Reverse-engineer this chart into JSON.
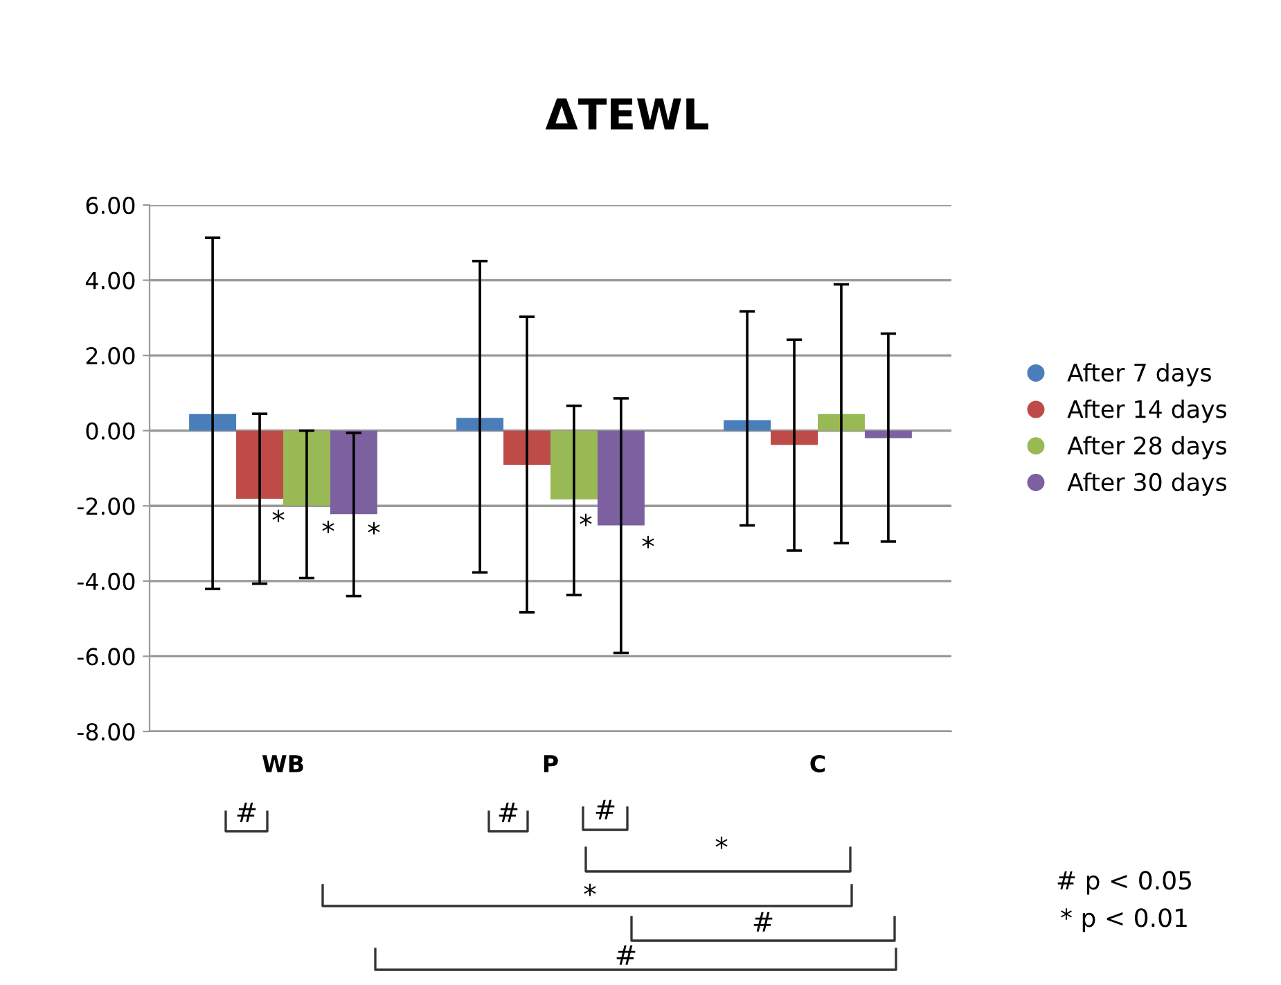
{
  "chart_data": {
    "type": "bar",
    "title": "ΔTEWL",
    "categories": [
      "WB",
      "P",
      "C"
    ],
    "series": [
      {
        "name": "After 7 days",
        "color": "#4a7ebb",
        "values": [
          0.44,
          0.34,
          0.28
        ],
        "errors": [
          [
            -4.21,
            5.13
          ],
          [
            -3.77,
            4.51
          ],
          [
            -2.52,
            3.17
          ]
        ]
      },
      {
        "name": "After 14 days",
        "color": "#be4b48",
        "values": [
          -1.81,
          -0.91,
          -0.38
        ],
        "errors": [
          [
            -4.07,
            0.45
          ],
          [
            -4.83,
            3.03
          ],
          [
            -3.19,
            2.42
          ]
        ]
      },
      {
        "name": "After 28 days",
        "color": "#98b954",
        "values": [
          -1.99,
          -1.83,
          0.44
        ],
        "errors": [
          [
            -3.92,
            0.0
          ],
          [
            -4.37,
            0.66
          ],
          [
            -2.99,
            3.89
          ]
        ]
      },
      {
        "name": "After 30 days",
        "color": "#7d60a0",
        "values": [
          -2.22,
          -2.52,
          -0.2
        ],
        "errors": [
          [
            -4.4,
            -0.06
          ],
          [
            -5.91,
            0.86
          ],
          [
            -2.95,
            2.58
          ]
        ]
      }
    ],
    "ylim": [
      -8,
      6
    ],
    "yticks": [
      {
        "value": -8,
        "label": "-8.00"
      },
      {
        "value": -6,
        "label": "-6.00"
      },
      {
        "value": -4,
        "label": "-4.00"
      },
      {
        "value": -2,
        "label": "-2.00"
      },
      {
        "value": 0,
        "label": "0.00"
      },
      {
        "value": 2,
        "label": "2.00"
      },
      {
        "value": 4,
        "label": "4.00"
      },
      {
        "value": 6,
        "label": "6.00"
      }
    ],
    "grid": "y",
    "legend": "right",
    "marker": "circle",
    "annotations": [
      "*",
      "*",
      "*",
      "*",
      "*",
      "#",
      "#",
      "#",
      "*",
      "*",
      "#",
      "#",
      "# p < 0.05",
      "* p < 0.01"
    ]
  }
}
